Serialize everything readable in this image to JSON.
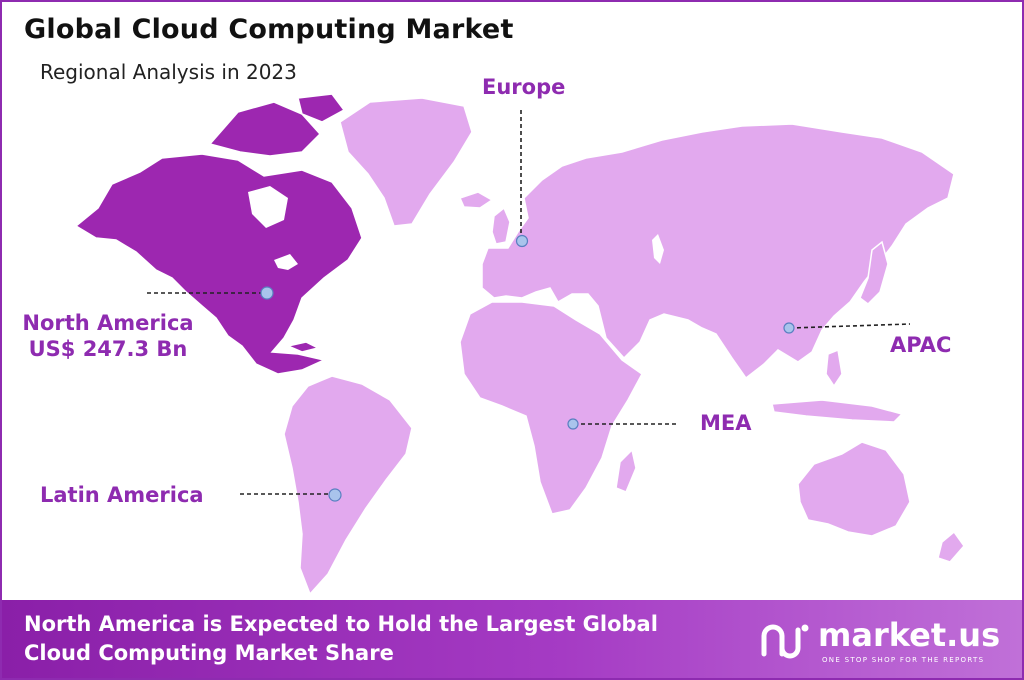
{
  "header": {
    "title": "Global Cloud Computing Market",
    "subtitle": "Regional Analysis in 2023"
  },
  "regions": [
    {
      "id": "north-america",
      "label": "North America",
      "value": "US$ 247.3 Bn",
      "highlighted": true
    },
    {
      "id": "europe",
      "label": "Europe",
      "highlighted": false
    },
    {
      "id": "apac",
      "label": "APAC",
      "highlighted": false
    },
    {
      "id": "mea",
      "label": "MEA",
      "highlighted": false
    },
    {
      "id": "latin-america",
      "label": "Latin America",
      "highlighted": false
    }
  ],
  "colors": {
    "highlight": "#9d27b0",
    "land": "#e2a9ee",
    "accent": "#8e2bb0",
    "marker": "#a9c4ec"
  },
  "footer": {
    "headline_line1": "North America is Expected to Hold the Largest Global",
    "headline_line2": "Cloud Computing Market Share",
    "brand": "market.us",
    "tagline": "ONE STOP SHOP FOR THE REPORTS"
  }
}
